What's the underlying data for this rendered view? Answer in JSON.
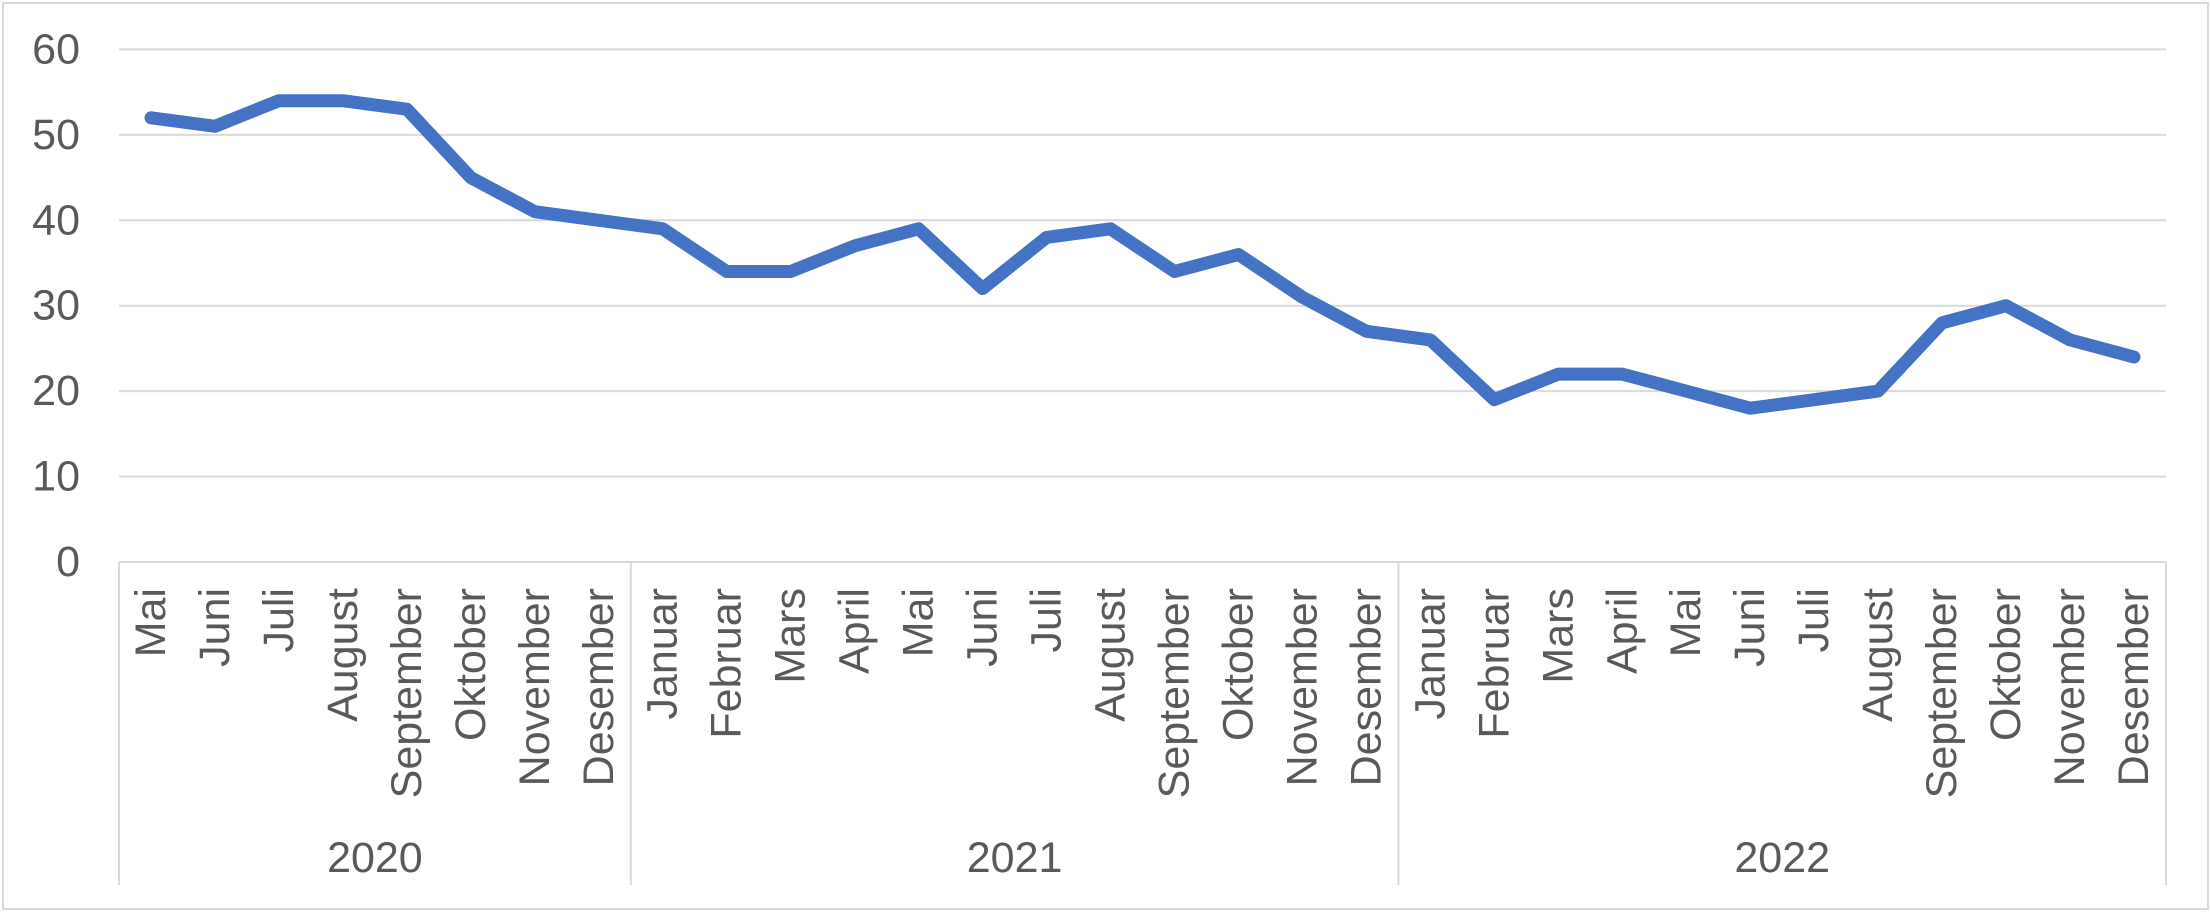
{
  "chart_data": {
    "type": "line",
    "title": "",
    "xlabel": "",
    "ylabel": "",
    "ylim": [
      0,
      60
    ],
    "yticks": [
      0,
      10,
      20,
      30,
      40,
      50,
      60
    ],
    "grid": true,
    "legend": false,
    "x_groups": [
      {
        "year": "2020",
        "months": [
          "Mai",
          "Juni",
          "Juli",
          "August",
          "September",
          "Oktober",
          "November",
          "Desember"
        ]
      },
      {
        "year": "2021",
        "months": [
          "Januar",
          "Februar",
          "Mars",
          "April",
          "Mai",
          "Juni",
          "Juli",
          "August",
          "September",
          "Oktober",
          "November",
          "Desember"
        ]
      },
      {
        "year": "2022",
        "months": [
          "Januar",
          "Februar",
          "Mars",
          "April",
          "Mai",
          "Juni",
          "Juli",
          "August",
          "September",
          "Oktober",
          "November",
          "Desember"
        ]
      }
    ],
    "series": [
      {
        "name": "",
        "values": [
          52,
          51,
          54,
          54,
          53,
          45,
          41,
          40,
          39,
          34,
          34,
          37,
          39,
          32,
          38,
          39,
          34,
          36,
          31,
          27,
          26,
          19,
          22,
          22,
          20,
          18,
          19,
          20,
          28,
          30,
          26,
          24
        ]
      }
    ],
    "colors": {
      "line": "#4472C4",
      "gridline": "#D9D9D9",
      "axis_line": "#D9D9D9",
      "divider": "#D9D9D9",
      "border": "#D9D9D9",
      "text": "#595959",
      "background": "#FFFFFF"
    }
  }
}
